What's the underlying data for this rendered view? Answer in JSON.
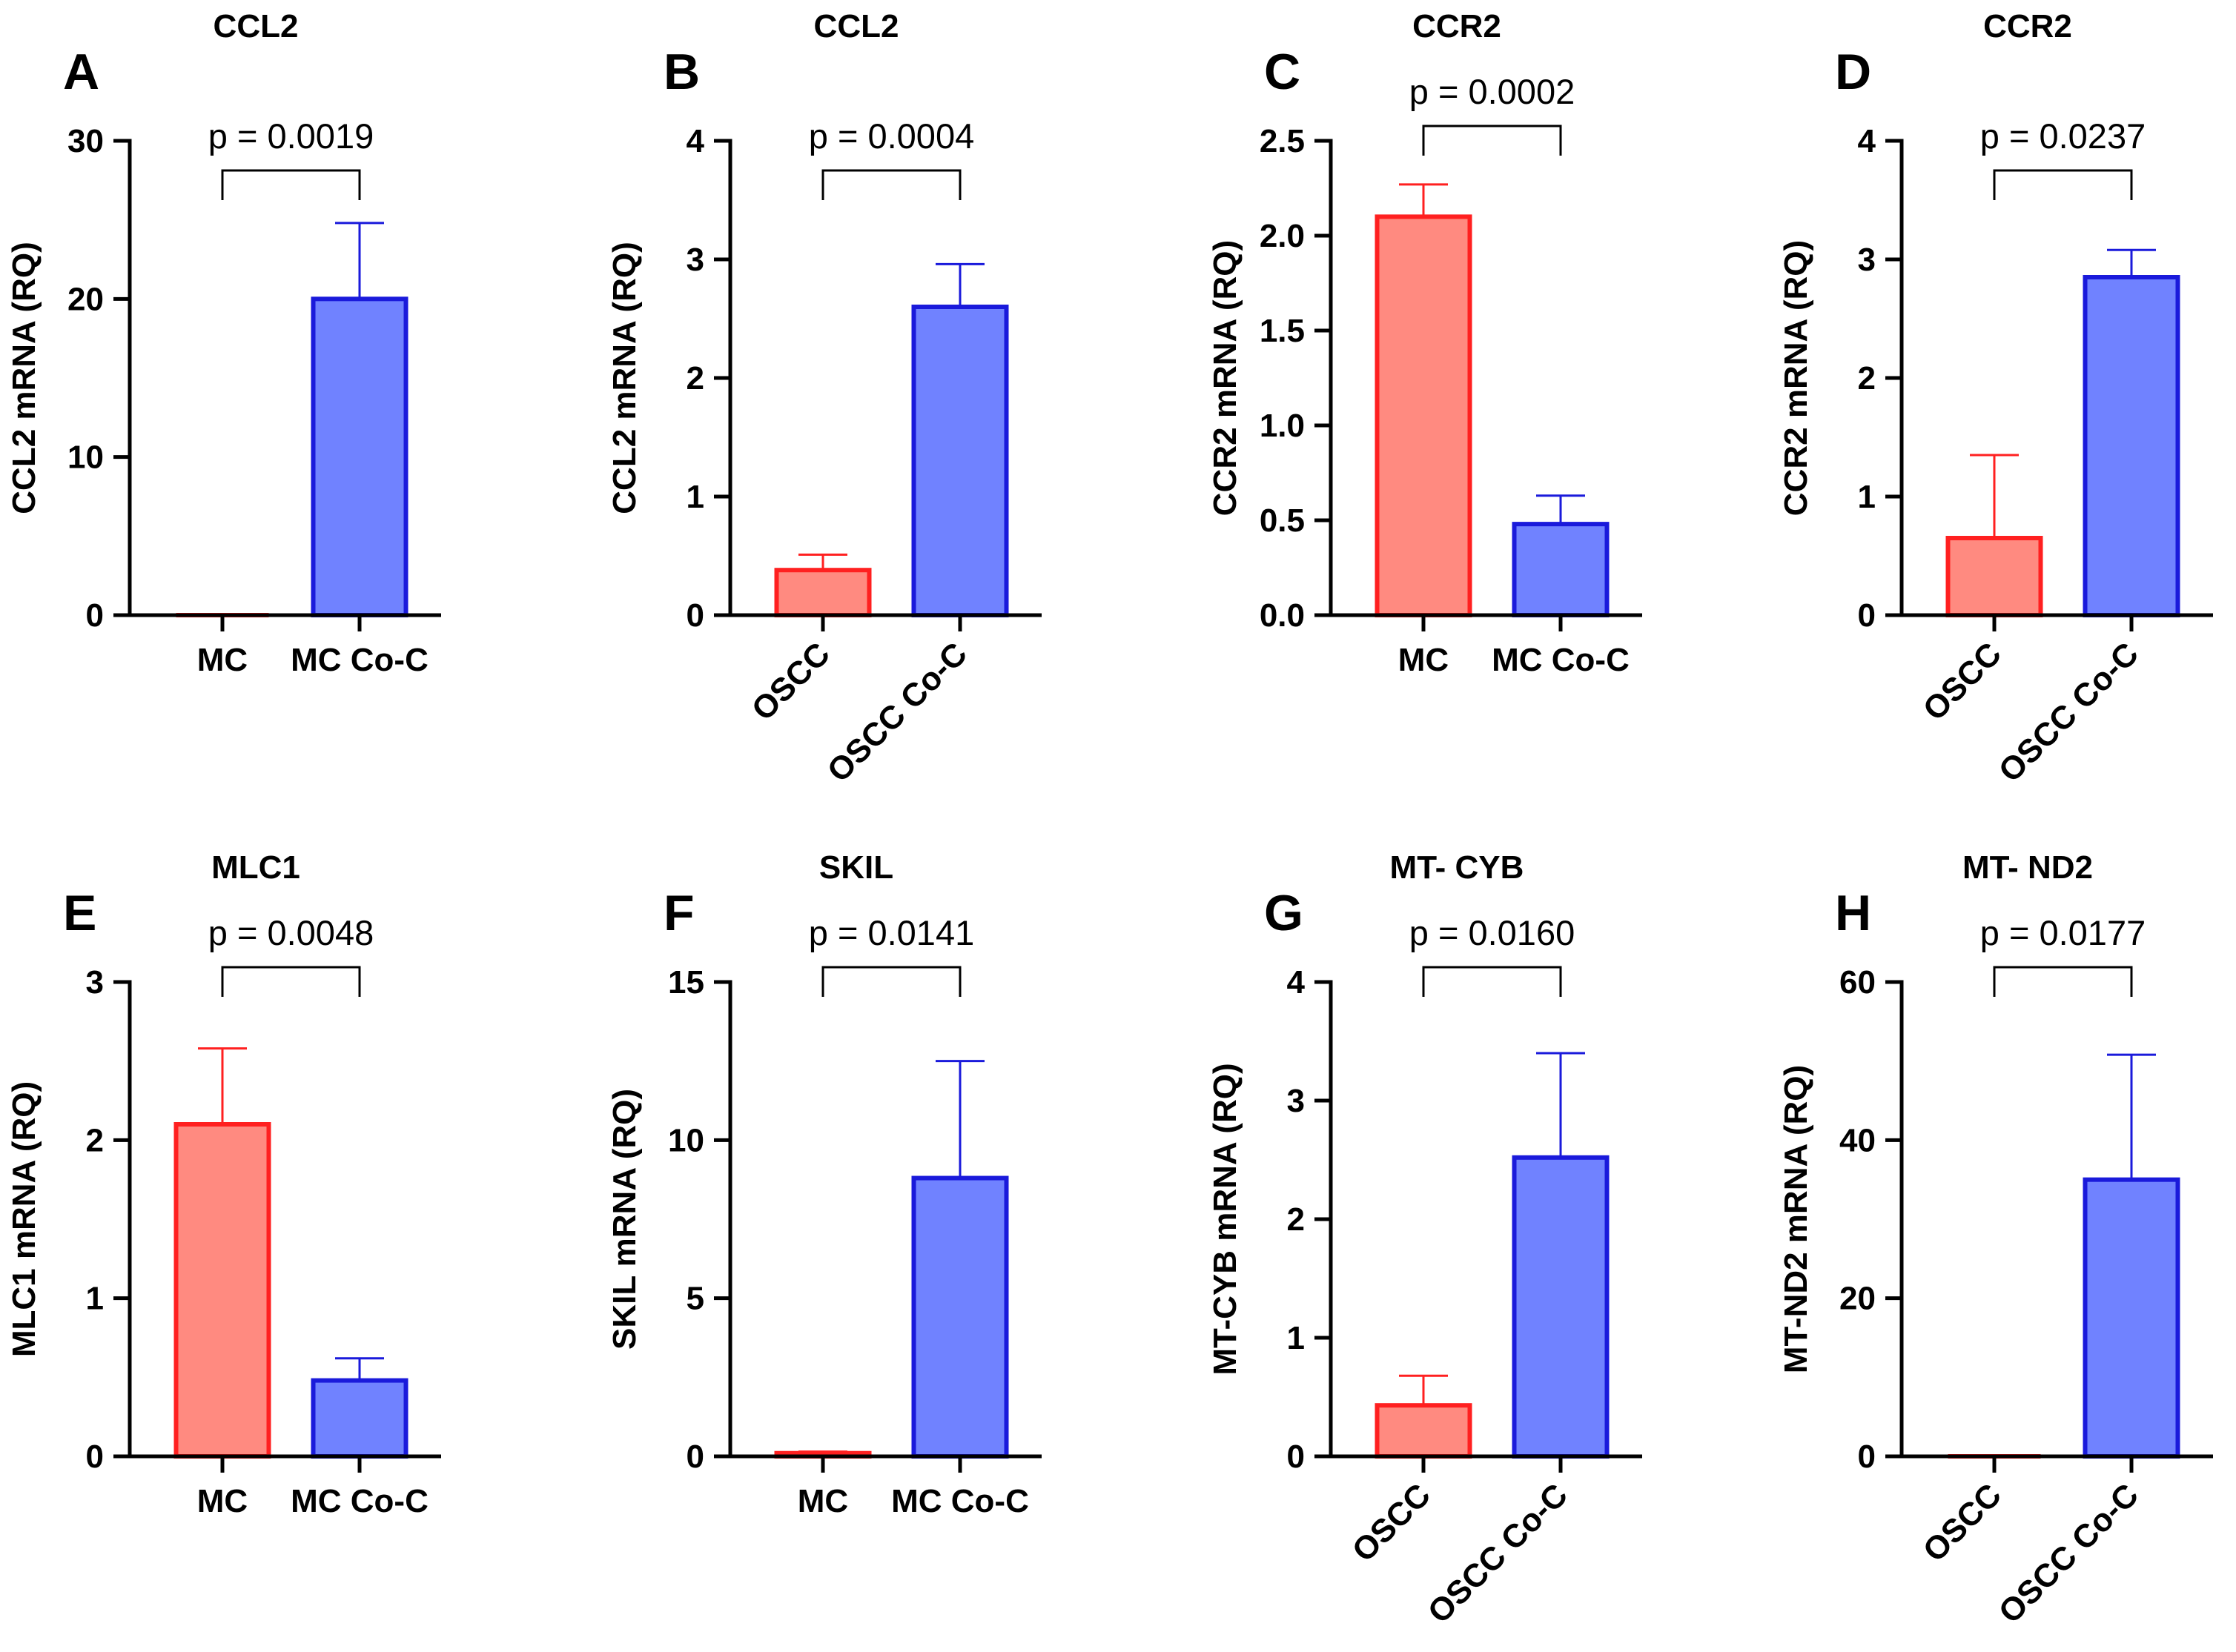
{
  "chart_data": [
    {
      "type": "bar",
      "letter": "A",
      "title": "CCL2",
      "ylabel": "CCL2 mRNA (RQ)",
      "ylim": [
        0,
        30
      ],
      "yticks": [
        0,
        10,
        20,
        30
      ],
      "tick_labels": [
        "0",
        "10",
        "20",
        "30"
      ],
      "categories": [
        "MC",
        "MC Co-C"
      ],
      "values": [
        0,
        20.0
      ],
      "errors": [
        0,
        4.8
      ],
      "colors": [
        "#FF8A80",
        "#7082FF"
      ],
      "edge_colors": [
        "#FF2020",
        "#1A1ADB"
      ],
      "rotated": false,
      "pvalue": "p = 0.0019"
    },
    {
      "type": "bar",
      "letter": "B",
      "title": "CCL2",
      "ylabel": "CCL2 mRNA (RQ)",
      "ylim": [
        0,
        4
      ],
      "yticks": [
        0,
        1,
        2,
        3,
        4
      ],
      "tick_labels": [
        "0",
        "1",
        "2",
        "3",
        "4"
      ],
      "categories": [
        "OSCC",
        "OSCC Co-C"
      ],
      "values": [
        0.38,
        2.6
      ],
      "errors": [
        0.13,
        0.36
      ],
      "colors": [
        "#FF8A80",
        "#7082FF"
      ],
      "edge_colors": [
        "#FF2020",
        "#1A1ADB"
      ],
      "rotated": true,
      "pvalue": "p = 0.0004"
    },
    {
      "type": "bar",
      "letter": "C",
      "title": "CCR2",
      "ylabel": "CCR2 mRNA (RQ)",
      "ylim": [
        0,
        2.5
      ],
      "yticks": [
        0,
        0.5,
        1.0,
        1.5,
        2.0,
        2.5
      ],
      "tick_labels": [
        "0.0",
        "0.5",
        "1.0",
        "1.5",
        "2.0",
        "2.5"
      ],
      "categories": [
        "MC",
        "MC Co-C"
      ],
      "values": [
        2.1,
        0.48
      ],
      "errors": [
        0.17,
        0.15
      ],
      "colors": [
        "#FF8A80",
        "#7082FF"
      ],
      "edge_colors": [
        "#FF2020",
        "#1A1ADB"
      ],
      "rotated": false,
      "pvalue": "p = 0.0002"
    },
    {
      "type": "bar",
      "letter": "D",
      "title": "CCR2",
      "ylabel": "CCR2 mRNA (RQ)",
      "ylim": [
        0,
        4
      ],
      "yticks": [
        0,
        1,
        2,
        3,
        4
      ],
      "tick_labels": [
        "0",
        "1",
        "2",
        "3",
        "4"
      ],
      "categories": [
        "OSCC",
        "OSCC Co-C"
      ],
      "values": [
        0.65,
        2.85
      ],
      "errors": [
        0.7,
        0.23
      ],
      "colors": [
        "#FF8A80",
        "#7082FF"
      ],
      "edge_colors": [
        "#FF2020",
        "#1A1ADB"
      ],
      "rotated": true,
      "pvalue": "p = 0.0237"
    },
    {
      "type": "bar",
      "letter": "E",
      "title": "MLC1",
      "ylabel": "MLC1 mRNA (RQ)",
      "ylim": [
        0,
        3
      ],
      "yticks": [
        0,
        1,
        2,
        3
      ],
      "tick_labels": [
        "0",
        "1",
        "2",
        "3"
      ],
      "categories": [
        "MC",
        "MC Co-C"
      ],
      "values": [
        2.1,
        0.48
      ],
      "errors": [
        0.48,
        0.14
      ],
      "colors": [
        "#FF8A80",
        "#7082FF"
      ],
      "edge_colors": [
        "#FF2020",
        "#1A1ADB"
      ],
      "rotated": false,
      "pvalue": "p = 0.0048"
    },
    {
      "type": "bar",
      "letter": "F",
      "title": "SKIL",
      "ylabel": "SKIL mRNA (RQ)",
      "ylim": [
        0,
        15
      ],
      "yticks": [
        0,
        5,
        10,
        15
      ],
      "tick_labels": [
        "0",
        "5",
        "10",
        "15"
      ],
      "categories": [
        "MC",
        "MC Co-C"
      ],
      "values": [
        0.1,
        8.8
      ],
      "errors": [
        0.05,
        3.7
      ],
      "colors": [
        "#FF8A80",
        "#7082FF"
      ],
      "edge_colors": [
        "#FF2020",
        "#1A1ADB"
      ],
      "rotated": false,
      "pvalue": "p = 0.0141"
    },
    {
      "type": "bar",
      "letter": "G",
      "title": "MT- CYB",
      "ylabel": "MT-CYB mRNA (RQ)",
      "ylim": [
        0,
        4
      ],
      "yticks": [
        0,
        1,
        2,
        3,
        4
      ],
      "tick_labels": [
        "0",
        "1",
        "2",
        "3",
        "4"
      ],
      "categories": [
        "OSCC",
        "OSCC Co-C"
      ],
      "values": [
        0.43,
        2.52
      ],
      "errors": [
        0.25,
        0.88
      ],
      "colors": [
        "#FF8A80",
        "#7082FF"
      ],
      "edge_colors": [
        "#FF2020",
        "#1A1ADB"
      ],
      "rotated": true,
      "pvalue": "p = 0.0160"
    },
    {
      "type": "bar",
      "letter": "H",
      "title": "MT- ND2",
      "ylabel": "MT-ND2 mRNA (RQ)",
      "ylim": [
        0,
        60
      ],
      "yticks": [
        0,
        20,
        40,
        60
      ],
      "tick_labels": [
        "0",
        "20",
        "40",
        "60"
      ],
      "categories": [
        "OSCC",
        "OSCC Co-C"
      ],
      "values": [
        0,
        35
      ],
      "errors": [
        0,
        15.8
      ],
      "colors": [
        "#FF8A80",
        "#7082FF"
      ],
      "edge_colors": [
        "#FF2020",
        "#1A1ADB"
      ],
      "rotated": true,
      "pvalue": "p = 0.0177"
    }
  ]
}
